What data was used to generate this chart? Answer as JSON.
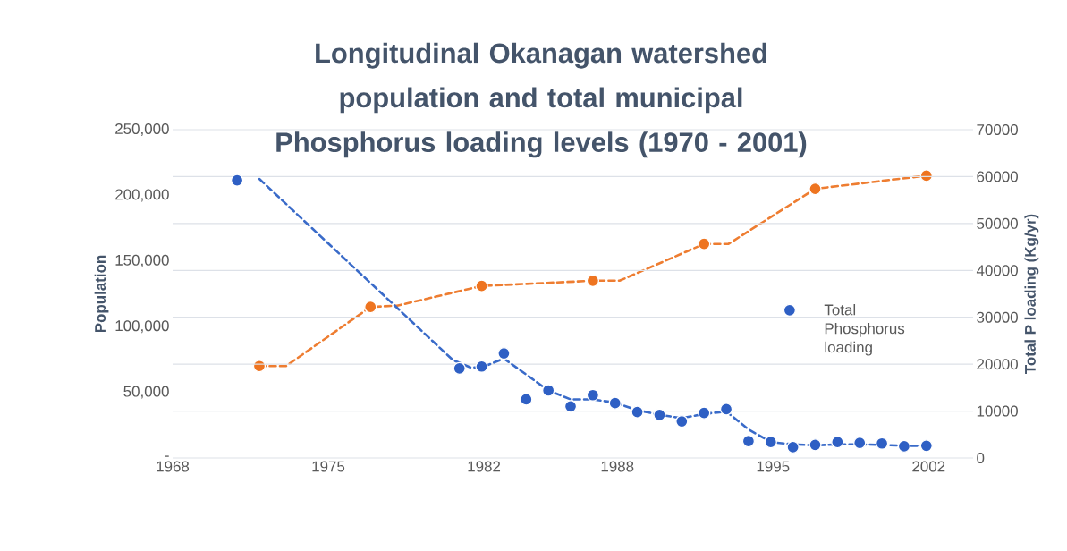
{
  "chart_data": {
    "type": "scatter",
    "title": "Longitudinal Okanagan watershed population and total municipal Phosphorus loading levels (1970 - 2001)",
    "ylabel": "Population",
    "y2label": "Total P loading (Kg/yr)",
    "xlim": [
      1968,
      2004
    ],
    "xticks": [
      1968,
      1975,
      1982,
      1988,
      1995,
      2002
    ],
    "ylim": [
      0,
      250000
    ],
    "yticks": [
      {
        "value": 0,
        "label": "-"
      },
      {
        "value": 50000,
        "label": "50,000"
      },
      {
        "value": 100000,
        "label": "100,000"
      },
      {
        "value": 150000,
        "label": "150,000"
      },
      {
        "value": 200000,
        "label": "200,000"
      },
      {
        "value": 250000,
        "label": "250,000"
      }
    ],
    "y2lim": [
      0,
      70000
    ],
    "y2ticks": [
      0,
      10000,
      20000,
      30000,
      40000,
      50000,
      60000,
      70000
    ],
    "grid": "y2",
    "legend": "right",
    "series": [
      {
        "type": "line",
        "axis": "y2",
        "color": "#3a6bc9",
        "line_style": "dashed",
        "marker": "none",
        "x": [
          1971.9,
          1980.6,
          1981.4,
          1981.9,
          1982.9,
          1984.9,
          1985.9,
          1986.9,
          1987.9,
          1988.9,
          1989.9,
          1990.9,
          1991.9,
          1992.9,
          1993.9,
          1994.9,
          1995.9,
          1996.9,
          1997.9,
          1998.9,
          1999.9,
          2000.9,
          2001.9
        ],
        "values": [
          59500,
          20900,
          19300,
          19300,
          21200,
          14400,
          12500,
          12500,
          11800,
          10200,
          9200,
          8500,
          9400,
          9900,
          6100,
          3400,
          2900,
          2700,
          2900,
          2900,
          2800,
          2600,
          2600
        ]
      },
      {
        "type": "line",
        "color": "#ee7d31",
        "line_style": "dashed",
        "marker": "none",
        "x": [
          1971.9,
          1973.1,
          1976.9,
          1978.1,
          1981.9,
          1986.9,
          1988.1,
          1991.9,
          1993,
          1996.9,
          2001.9
        ],
        "values": [
          70000,
          70000,
          115000,
          116000,
          131000,
          135000,
          135000,
          163000,
          163000,
          205000,
          215000
        ]
      },
      {
        "name": "Total Phosphorus loading",
        "axis": "y2",
        "color": "#2e5fc4",
        "marker": "circle",
        "x": [
          1970.9,
          1980.9,
          1981.9,
          1982.9,
          1983.9,
          1984.9,
          1985.9,
          1986.9,
          1987.9,
          1988.9,
          1989.9,
          1990.9,
          1991.9,
          1992.9,
          1993.9,
          1994.9,
          1995.9,
          1996.9,
          1997.9,
          1998.9,
          1999.9,
          2000.9,
          2001.9
        ],
        "values": [
          59200,
          19100,
          19500,
          22300,
          12500,
          14400,
          11000,
          13400,
          11700,
          9800,
          9200,
          7800,
          9600,
          10400,
          3600,
          3400,
          2300,
          2800,
          3400,
          3200,
          3100,
          2500,
          2600
        ]
      },
      {
        "color": "#ee7420",
        "marker": "circle",
        "x": [
          1971.9,
          1976.9,
          1981.9,
          1986.9,
          1991.9,
          1996.9,
          2001.9
        ],
        "values": [
          70000,
          115000,
          131000,
          135000,
          163000,
          205000,
          215000
        ]
      }
    ]
  }
}
